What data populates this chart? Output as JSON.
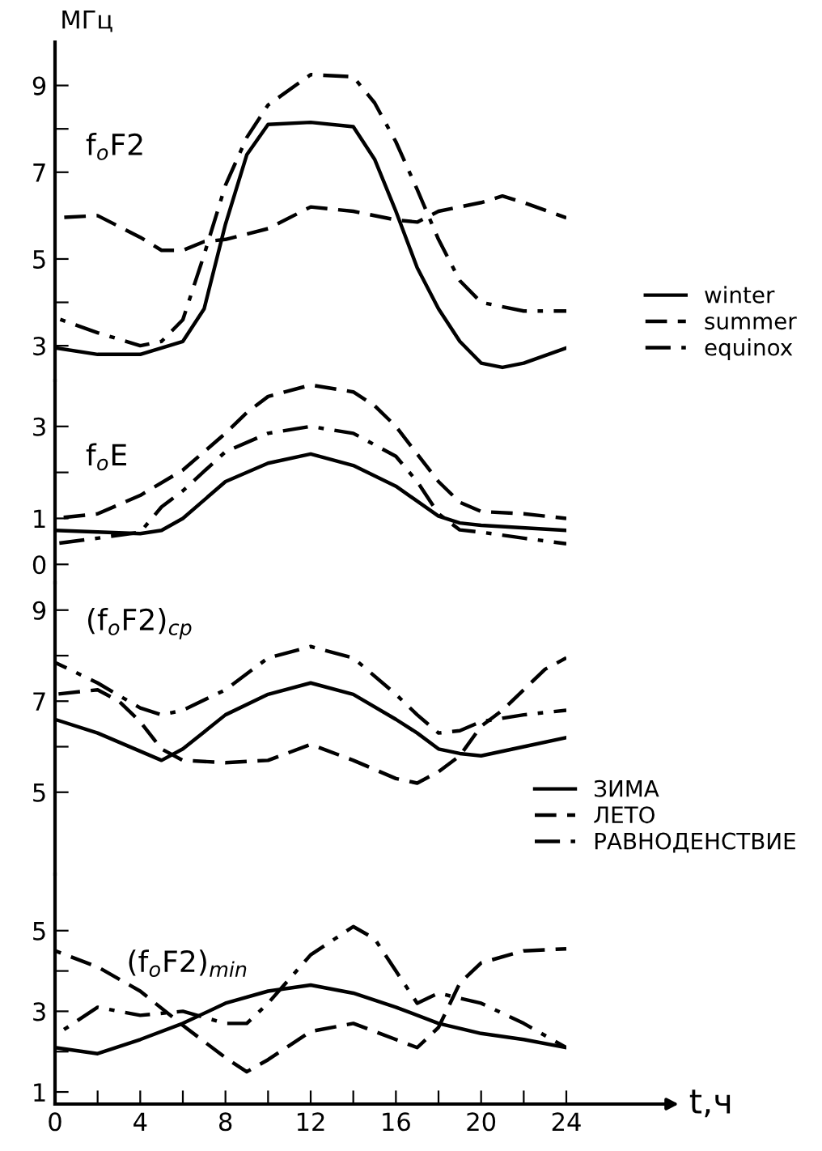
{
  "chart_data": [
    {
      "type": "line",
      "title": "f$_{o}$F2",
      "ylabel": "МГц",
      "xlim": [
        0,
        24
      ],
      "ylim": [
        2.2,
        10
      ],
      "yticks": [
        3,
        {
          "value": 4,
          "label": null
        },
        5,
        7,
        {
          "value": 8,
          "label": null
        },
        9
      ],
      "tick_labels": "y",
      "legend": "right",
      "series": [
        {
          "name": "winter",
          "color": "#000000",
          "line_style": "solid",
          "x": [
            0,
            2,
            4,
            6,
            7,
            8,
            9,
            10,
            12,
            14,
            15,
            16,
            17,
            18,
            19,
            20,
            21,
            22,
            24
          ],
          "values": [
            2.95,
            2.8,
            2.8,
            3.1,
            3.85,
            5.8,
            7.4,
            8.1,
            8.15,
            8.05,
            7.3,
            6.1,
            4.8,
            3.85,
            3.1,
            2.6,
            2.5,
            2.6,
            2.95
          ]
        },
        {
          "name": "summer",
          "color": "#000000",
          "line_style": "dashed",
          "x": [
            0,
            2,
            4,
            5,
            6,
            7,
            8,
            10,
            12,
            14,
            16,
            17,
            18,
            20,
            21,
            22,
            24
          ],
          "values": [
            5.95,
            6.0,
            5.5,
            5.2,
            5.2,
            5.4,
            5.45,
            5.7,
            6.2,
            6.1,
            5.9,
            5.85,
            6.1,
            6.3,
            6.45,
            6.3,
            5.95
          ]
        },
        {
          "name": "equinox",
          "color": "#000000",
          "line_style": "dashdot",
          "x": [
            0,
            2,
            4,
            5,
            6,
            7,
            8,
            9,
            10,
            12,
            14,
            15,
            16,
            17,
            18,
            19,
            20,
            22,
            24
          ],
          "values": [
            3.65,
            3.3,
            3.0,
            3.1,
            3.6,
            5.1,
            6.7,
            7.8,
            8.55,
            9.25,
            9.2,
            8.6,
            7.7,
            6.6,
            5.45,
            4.5,
            4.0,
            3.8,
            3.8
          ]
        }
      ]
    },
    {
      "type": "line",
      "title": "f$_{o}$E",
      "xlim": [
        0,
        24
      ],
      "ylim": [
        -0.4,
        4
      ],
      "yticks": [
        0,
        1,
        {
          "value": 2,
          "label": null
        },
        3
      ],
      "tick_labels": "y",
      "series": [
        {
          "color": "#000000",
          "line_style": "solid",
          "x": [
            0,
            4,
            5,
            6,
            8,
            10,
            12,
            14,
            16,
            18,
            19,
            20,
            24
          ],
          "values": [
            0.74,
            0.67,
            0.74,
            1.0,
            1.8,
            2.2,
            2.4,
            2.15,
            1.7,
            1.05,
            0.9,
            0.85,
            0.74
          ]
        },
        {
          "color": "#000000",
          "line_style": "dashed",
          "x": [
            0,
            2,
            4,
            6,
            7,
            8,
            9,
            10,
            12,
            14,
            15,
            16,
            17,
            18,
            19,
            20,
            22,
            24
          ],
          "values": [
            1.0,
            1.1,
            1.5,
            2.05,
            2.45,
            2.85,
            3.3,
            3.65,
            3.9,
            3.75,
            3.45,
            3.0,
            2.4,
            1.8,
            1.35,
            1.15,
            1.1,
            1.0
          ]
        },
        {
          "color": "#000000",
          "line_style": "dashdot",
          "x": [
            0,
            2,
            4,
            5,
            6,
            8,
            10,
            12,
            14,
            16,
            17,
            18,
            19,
            20,
            22,
            24
          ],
          "values": [
            0.45,
            0.57,
            0.7,
            1.25,
            1.6,
            2.45,
            2.85,
            3.0,
            2.85,
            2.35,
            1.8,
            1.1,
            0.75,
            0.7,
            0.57,
            0.45
          ]
        }
      ]
    },
    {
      "type": "line",
      "title": "(f$_{o}$F2)$_{ср}$",
      "xlim": [
        0,
        24
      ],
      "ylim": [
        3.2,
        9.6
      ],
      "yticks": [
        5,
        {
          "value": 6,
          "label": null
        },
        7,
        {
          "value": 8,
          "label": null
        },
        9
      ],
      "tick_labels": "y",
      "legend": "right",
      "series": [
        {
          "name": "ЗИМА",
          "color": "#000000",
          "line_style": "solid",
          "x": [
            0,
            2,
            4,
            5,
            6,
            8,
            10,
            12,
            14,
            16,
            17,
            18,
            19,
            20,
            22,
            24
          ],
          "values": [
            6.6,
            6.3,
            5.9,
            5.7,
            5.95,
            6.7,
            7.15,
            7.4,
            7.15,
            6.6,
            6.3,
            5.95,
            5.85,
            5.8,
            6.0,
            6.2
          ]
        },
        {
          "name": "ЛЕТО",
          "color": "#000000",
          "line_style": "dashed",
          "x": [
            0,
            2,
            3,
            4,
            5,
            6,
            8,
            10,
            12,
            14,
            16,
            17,
            18,
            19,
            20,
            21,
            22,
            23,
            24
          ],
          "values": [
            7.15,
            7.25,
            7.0,
            6.55,
            5.95,
            5.7,
            5.65,
            5.7,
            6.05,
            5.7,
            5.3,
            5.2,
            5.45,
            5.8,
            6.45,
            6.8,
            7.25,
            7.7,
            7.95
          ]
        },
        {
          "name": "РАВНОДЕНСТВИЕ",
          "color": "#000000",
          "line_style": "dashdot",
          "x": [
            0,
            2,
            4,
            5,
            6,
            8,
            10,
            12,
            14,
            16,
            17,
            18,
            19,
            20,
            22,
            24
          ],
          "values": [
            7.85,
            7.4,
            6.85,
            6.7,
            6.8,
            7.25,
            7.95,
            8.2,
            7.95,
            7.15,
            6.7,
            6.3,
            6.35,
            6.55,
            6.7,
            6.8
          ]
        }
      ]
    },
    {
      "type": "line",
      "title": "(f$_{o}$F2)$_{min}$",
      "xlabel": "t,ч",
      "xlim": [
        0,
        24
      ],
      "ylim": [
        0.7,
        6.4
      ],
      "xticks": [
        0,
        {
          "value": 2,
          "label": null
        },
        4,
        {
          "value": 6,
          "label": null
        },
        8,
        {
          "value": 10,
          "label": null
        },
        12,
        {
          "value": 14,
          "label": null
        },
        16,
        {
          "value": 18,
          "label": null
        },
        20,
        {
          "value": 22,
          "label": null
        },
        24
      ],
      "yticks": [
        1,
        {
          "value": 2,
          "label": null
        },
        3,
        {
          "value": 4,
          "label": null
        },
        5
      ],
      "series": [
        {
          "color": "#000000",
          "line_style": "solid",
          "x": [
            0,
            2,
            4,
            6,
            8,
            10,
            12,
            14,
            16,
            18,
            20,
            22,
            24
          ],
          "values": [
            2.1,
            1.95,
            2.3,
            2.7,
            3.2,
            3.5,
            3.65,
            3.45,
            3.1,
            2.7,
            2.45,
            2.3,
            2.1
          ]
        },
        {
          "color": "#000000",
          "line_style": "dashed",
          "x": [
            0,
            2,
            4,
            6,
            8,
            9,
            10,
            12,
            14,
            16,
            17,
            18,
            19,
            20,
            22,
            24
          ],
          "values": [
            4.5,
            4.1,
            3.5,
            2.65,
            1.85,
            1.5,
            1.8,
            2.5,
            2.7,
            2.3,
            2.1,
            2.6,
            3.7,
            4.2,
            4.5,
            4.55
          ]
        },
        {
          "color": "#000000",
          "line_style": "dashdot",
          "x": [
            0,
            2,
            4,
            6,
            8,
            9,
            10,
            12,
            14,
            15,
            16,
            17,
            18,
            20,
            22,
            24
          ],
          "values": [
            2.4,
            3.1,
            2.9,
            3.0,
            2.7,
            2.7,
            3.2,
            4.4,
            5.1,
            4.8,
            4.0,
            3.2,
            3.45,
            3.2,
            2.7,
            2.1
          ]
        }
      ]
    }
  ]
}
